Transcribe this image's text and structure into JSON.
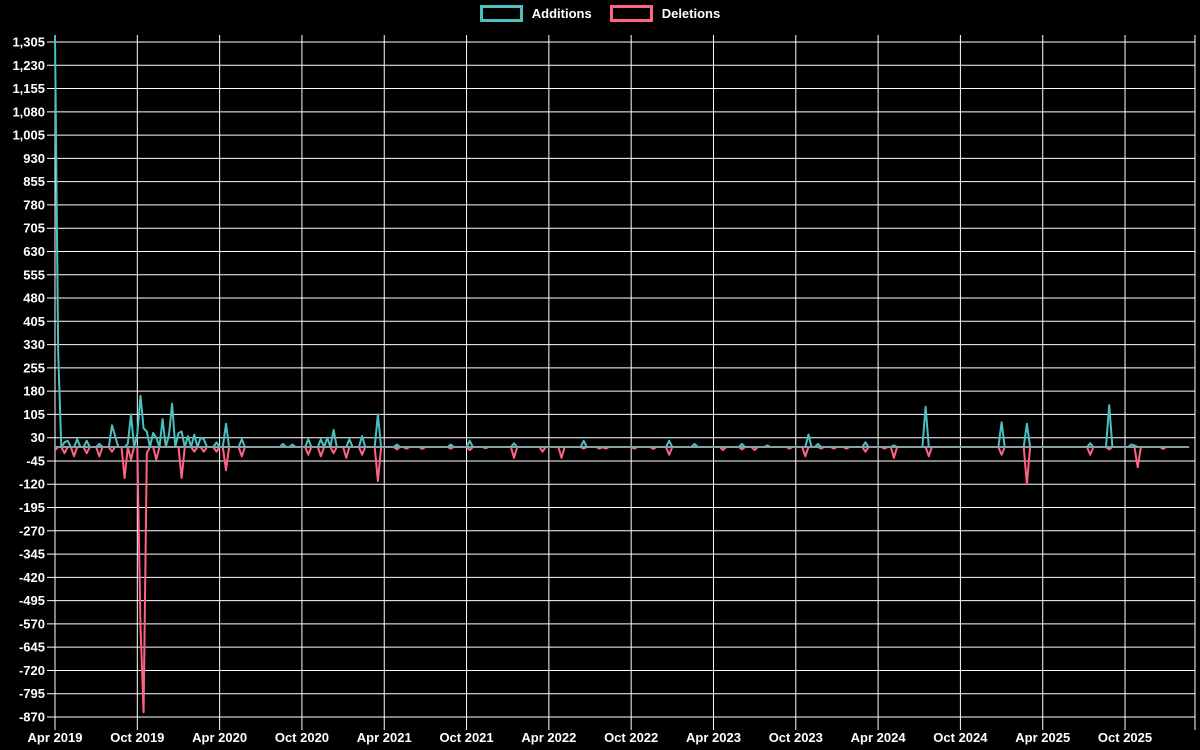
{
  "chart_data": {
    "type": "line",
    "title": "",
    "xlabel": "",
    "ylabel": "",
    "grid": true,
    "legend_position": "top-center",
    "background_color": "#000000",
    "grid_color": "#ffffff",
    "text_color": "#ffffff",
    "zero_line_color": "#8aa0a5",
    "legend": [
      {
        "label": "Additions",
        "color": "#4bc0c0"
      },
      {
        "label": "Deletions",
        "color": "#ff6384"
      }
    ],
    "x_tick_labels": [
      "Apr 2019",
      "Oct 2019",
      "Apr 2020",
      "Oct 2020",
      "Apr 2021",
      "Oct 2021",
      "Apr 2022",
      "Oct 2022",
      "Apr 2023",
      "Oct 2023",
      "Apr 2024",
      "Oct 2024",
      "Apr 2025",
      "Oct 2025"
    ],
    "x_tick_weeks": [
      0,
      26,
      52,
      78,
      104,
      130,
      156,
      182,
      208,
      234,
      260,
      286,
      312,
      338
    ],
    "y_ticks": [
      1305,
      1230,
      1155,
      1080,
      1005,
      930,
      855,
      780,
      705,
      630,
      555,
      480,
      405,
      330,
      255,
      180,
      105,
      30,
      -45,
      -120,
      -195,
      -270,
      -345,
      -420,
      -495,
      -570,
      -645,
      -720,
      -795,
      -870
    ],
    "y_tick_labels": [
      "1,305",
      "1,230",
      "1,155",
      "1,080",
      "1,005",
      "930",
      "855",
      "780",
      "705",
      "630",
      "555",
      "480",
      "405",
      "330",
      "255",
      "180",
      "105",
      "30",
      "-45",
      "-120",
      "-195",
      "-270",
      "-345",
      "-420",
      "-495",
      "-570",
      "-645",
      "-720",
      "-795",
      "-870"
    ],
    "ylim": [
      -892,
      1327
    ],
    "weeks_total": 359,
    "x_unit": "week",
    "series": [
      {
        "name": "Additions",
        "color": "#4bc0c0",
        "default": 0,
        "spikes": {
          "0": 1325,
          "1": 300,
          "3": 15,
          "4": 20,
          "7": 25,
          "10": 20,
          "14": 10,
          "18": 70,
          "19": 35,
          "23": 10,
          "24": 105,
          "26": 40,
          "27": 165,
          "28": 60,
          "29": 50,
          "31": 45,
          "32": 30,
          "34": 90,
          "36": 40,
          "37": 140,
          "39": 45,
          "40": 50,
          "42": 35,
          "44": 40,
          "46": 30,
          "47": 25,
          "51": 15,
          "54": 75,
          "59": 25,
          "72": 10,
          "75": 8,
          "80": 25,
          "84": 25,
          "86": 30,
          "88": 55,
          "93": 25,
          "97": 35,
          "102": 105,
          "108": 8,
          "125": 8,
          "131": 20,
          "145": 12,
          "167": 20,
          "194": 20,
          "202": 10,
          "217": 10,
          "225": 5,
          "238": 40,
          "241": 10,
          "256": 15,
          "265": 5,
          "275": 130,
          "299": 80,
          "307": 75,
          "327": 12,
          "333": 135,
          "340": 8,
          "341": 5
        }
      },
      {
        "name": "Deletions",
        "color": "#ff6384",
        "default": 0,
        "spikes": {
          "0": -10,
          "3": -20,
          "6": -30,
          "10": -20,
          "14": -30,
          "18": -15,
          "22": -100,
          "24": -40,
          "27": -580,
          "28": -855,
          "29": -20,
          "32": -40,
          "40": -100,
          "44": -15,
          "47": -15,
          "51": -15,
          "54": -75,
          "59": -30,
          "80": -25,
          "84": -30,
          "88": -20,
          "92": -35,
          "97": -25,
          "102": -110,
          "108": -8,
          "111": -5,
          "116": -6,
          "125": -5,
          "131": -10,
          "136": -4,
          "145": -35,
          "154": -15,
          "160": -35,
          "167": -5,
          "172": -5,
          "174": -5,
          "183": -5,
          "189": -6,
          "194": -25,
          "211": -10,
          "217": -8,
          "221": -10,
          "232": -5,
          "237": -30,
          "242": -5,
          "246": -5,
          "250": -5,
          "256": -15,
          "262": -5,
          "265": -35,
          "276": -30,
          "299": -25,
          "307": -120,
          "327": -25,
          "333": -8,
          "342": -65,
          "350": -6
        }
      }
    ]
  }
}
